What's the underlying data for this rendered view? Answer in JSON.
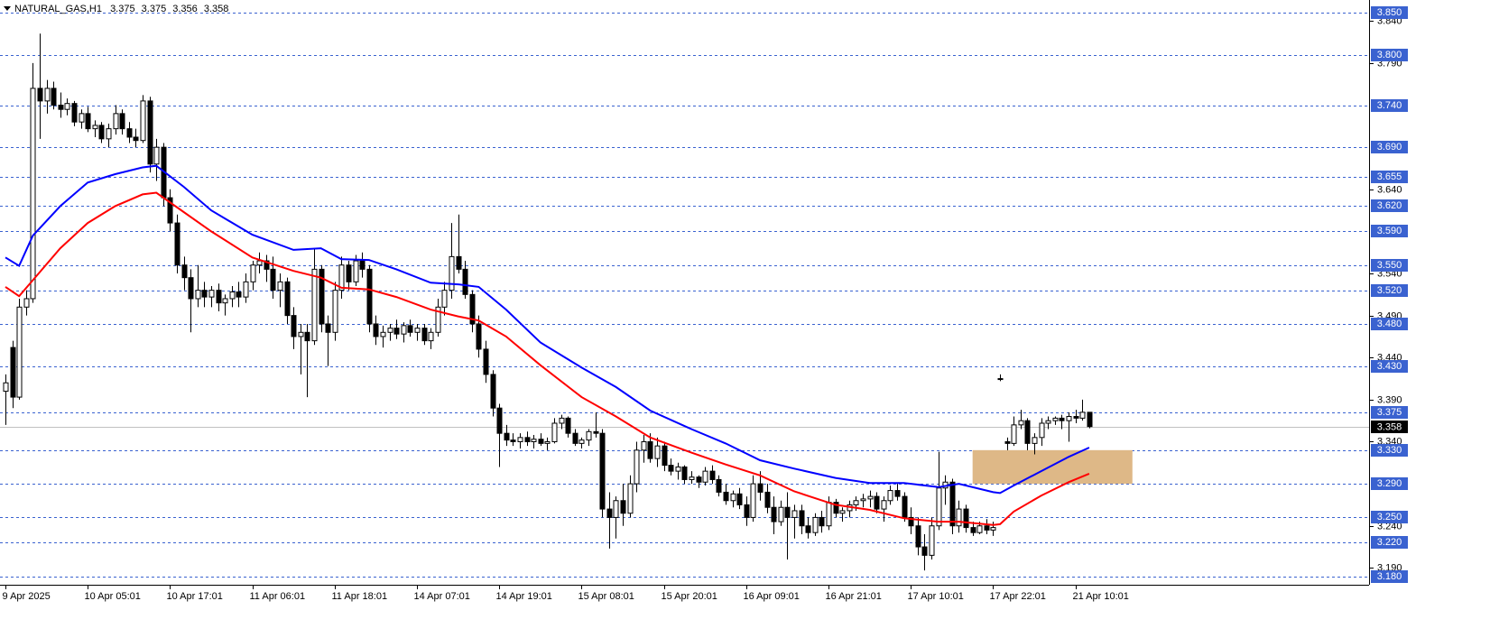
{
  "chart_data": {
    "type": "candlestick",
    "symbol": "NATURAL_GAS,H1",
    "header_values": [
      3.375,
      3.375,
      3.356,
      3.358
    ],
    "categories": [
      "9 Apr 2025",
      null,
      null,
      null,
      null,
      null,
      null,
      null,
      null,
      null,
      null,
      null,
      "10 Apr 05:01",
      null,
      null,
      null,
      null,
      null,
      null,
      null,
      null,
      null,
      null,
      null,
      "10 Apr 17:01",
      null,
      null,
      null,
      null,
      null,
      null,
      null,
      null,
      null,
      null,
      null,
      "11 Apr 06:01",
      null,
      null,
      null,
      null,
      null,
      null,
      null,
      null,
      null,
      null,
      null,
      "11 Apr 18:01",
      null,
      null,
      null,
      null,
      null,
      null,
      null,
      null,
      null,
      null,
      null,
      "14 Apr 07:01",
      null,
      null,
      null,
      null,
      null,
      null,
      null,
      null,
      null,
      null,
      null,
      "14 Apr 19:01",
      null,
      null,
      null,
      null,
      null,
      null,
      null,
      null,
      null,
      null,
      null,
      "15 Apr 08:01",
      null,
      null,
      null,
      null,
      null,
      null,
      null,
      null,
      null,
      null,
      null,
      "15 Apr 20:01",
      null,
      null,
      null,
      null,
      null,
      null,
      null,
      null,
      null,
      null,
      null,
      "16 Apr 09:01",
      null,
      null,
      null,
      null,
      null,
      null,
      null,
      null,
      null,
      null,
      null,
      "16 Apr 21:01",
      null,
      null,
      null,
      null,
      null,
      null,
      null,
      null,
      null,
      null,
      null,
      "17 Apr 10:01",
      null,
      null,
      null,
      null,
      null,
      null,
      null,
      null,
      null,
      null,
      null,
      "17 Apr 22:01",
      null,
      null,
      null,
      null,
      null,
      null,
      null,
      null,
      null,
      null,
      null,
      "21 Apr 10:01",
      null,
      null
    ],
    "candles": {
      "open": [
        3.4,
        3.452,
        3.393,
        3.5,
        3.51,
        3.76,
        3.745,
        3.76,
        3.74,
        3.735,
        3.742,
        3.72,
        3.73,
        3.712,
        3.716,
        3.7,
        3.712,
        3.73,
        3.712,
        3.702,
        3.698,
        3.745,
        3.67,
        3.69,
        3.63,
        3.6,
        3.55,
        3.535,
        3.51,
        3.52,
        3.512,
        3.52,
        3.505,
        3.51,
        3.518,
        3.512,
        3.53,
        3.55,
        3.555,
        3.545,
        3.52,
        3.53,
        3.49,
        3.465,
        3.47,
        3.46,
        3.545,
        3.48,
        3.47,
        3.52,
        3.55,
        3.53,
        3.555,
        3.545,
        3.48,
        3.465,
        3.47,
        3.475,
        3.468,
        3.478,
        3.47,
        3.475,
        3.46,
        3.47,
        3.5,
        3.52,
        3.56,
        3.545,
        3.515,
        3.48,
        3.45,
        3.42,
        3.38,
        3.35,
        3.342,
        3.34,
        3.345,
        3.34,
        3.343,
        3.338,
        3.34,
        3.362,
        3.368,
        3.35,
        3.338,
        3.342,
        3.352,
        3.35,
        3.26,
        3.25,
        3.27,
        3.255,
        3.29,
        3.33,
        3.34,
        3.32,
        3.335,
        3.312,
        3.305,
        3.31,
        3.295,
        3.298,
        3.292,
        3.305,
        3.295,
        3.28,
        3.27,
        3.278,
        3.265,
        3.25,
        3.29,
        3.28,
        3.262,
        3.245,
        3.262,
        3.25,
        3.258,
        3.24,
        3.232,
        3.25,
        3.24,
        3.268,
        3.255,
        3.258,
        3.265,
        3.27,
        3.272,
        3.275,
        3.26,
        3.27,
        3.282,
        3.275,
        3.25,
        3.24,
        3.215,
        3.205,
        3.24,
        3.285,
        3.292,
        3.24,
        3.26,
        3.238,
        3.232,
        3.24,
        3.235,
        3.415,
        3.34,
        3.338,
        3.36,
        3.365,
        3.338,
        3.345,
        3.362,
        3.365,
        3.368,
        3.365,
        3.37,
        3.368,
        3.375
      ],
      "high": [
        3.42,
        3.46,
        3.51,
        3.52,
        3.79,
        3.825,
        3.77,
        3.768,
        3.755,
        3.748,
        3.745,
        3.735,
        3.738,
        3.722,
        3.72,
        3.718,
        3.74,
        3.735,
        3.72,
        3.712,
        3.752,
        3.75,
        3.7,
        3.695,
        3.64,
        3.61,
        3.56,
        3.545,
        3.55,
        3.53,
        3.525,
        3.528,
        3.515,
        3.525,
        3.53,
        3.54,
        3.555,
        3.565,
        3.562,
        3.56,
        3.54,
        3.535,
        3.5,
        3.48,
        3.48,
        3.57,
        3.55,
        3.49,
        3.53,
        3.56,
        3.555,
        3.562,
        3.565,
        3.55,
        3.49,
        3.478,
        3.48,
        3.485,
        3.482,
        3.485,
        3.48,
        3.48,
        3.475,
        3.51,
        3.53,
        3.6,
        3.61,
        3.555,
        3.52,
        3.49,
        3.46,
        3.425,
        3.385,
        3.36,
        3.35,
        3.35,
        3.352,
        3.348,
        3.35,
        3.345,
        3.368,
        3.372,
        3.37,
        3.355,
        3.345,
        3.355,
        3.375,
        3.355,
        3.28,
        3.275,
        3.29,
        3.3,
        3.34,
        3.348,
        3.35,
        3.345,
        3.34,
        3.32,
        3.315,
        3.312,
        3.305,
        3.3,
        3.31,
        3.312,
        3.3,
        3.29,
        3.282,
        3.285,
        3.275,
        3.3,
        3.305,
        3.29,
        3.275,
        3.27,
        3.28,
        3.265,
        3.265,
        3.25,
        3.255,
        3.258,
        3.275,
        3.272,
        3.262,
        3.27,
        3.275,
        3.278,
        3.282,
        3.28,
        3.275,
        3.288,
        3.29,
        3.28,
        3.262,
        3.25,
        3.23,
        3.25,
        3.328,
        3.3,
        3.296,
        3.27,
        3.265,
        3.245,
        3.245,
        3.248,
        3.245,
        3.42,
        3.345,
        3.37,
        3.378,
        3.368,
        3.35,
        3.368,
        3.37,
        3.37,
        3.372,
        3.375,
        3.378,
        3.39,
        3.375
      ],
      "low": [
        3.36,
        3.38,
        3.39,
        3.49,
        3.505,
        3.7,
        3.73,
        3.735,
        3.725,
        3.728,
        3.715,
        3.712,
        3.708,
        3.702,
        3.695,
        3.69,
        3.705,
        3.705,
        3.695,
        3.69,
        3.695,
        3.66,
        3.65,
        3.62,
        3.59,
        3.54,
        3.52,
        3.47,
        3.5,
        3.5,
        3.5,
        3.495,
        3.49,
        3.5,
        3.5,
        3.505,
        3.52,
        3.54,
        3.53,
        3.51,
        3.5,
        3.48,
        3.45,
        3.42,
        3.393,
        3.455,
        3.47,
        3.43,
        3.46,
        3.51,
        3.52,
        3.525,
        3.535,
        3.47,
        3.455,
        3.452,
        3.46,
        3.462,
        3.458,
        3.465,
        3.46,
        3.455,
        3.45,
        3.465,
        3.49,
        3.51,
        3.54,
        3.51,
        3.47,
        3.44,
        3.41,
        3.37,
        3.31,
        3.335,
        3.335,
        3.332,
        3.335,
        3.332,
        3.335,
        3.33,
        3.338,
        3.355,
        3.345,
        3.335,
        3.332,
        3.335,
        3.345,
        3.25,
        3.213,
        3.225,
        3.24,
        3.25,
        3.28,
        3.315,
        3.315,
        3.31,
        3.305,
        3.3,
        3.295,
        3.29,
        3.29,
        3.285,
        3.288,
        3.29,
        3.275,
        3.265,
        3.262,
        3.26,
        3.24,
        3.245,
        3.27,
        3.255,
        3.23,
        3.24,
        3.2,
        3.225,
        3.23,
        3.225,
        3.228,
        3.232,
        3.235,
        3.25,
        3.245,
        3.25,
        3.258,
        3.262,
        3.262,
        3.255,
        3.245,
        3.265,
        3.27,
        3.245,
        3.23,
        3.205,
        3.187,
        3.2,
        3.235,
        3.265,
        3.23,
        3.232,
        3.232,
        3.228,
        3.23,
        3.23,
        3.228,
        3.412,
        3.33,
        3.335,
        3.355,
        3.33,
        3.325,
        3.335,
        3.355,
        3.36,
        3.355,
        3.34,
        3.362,
        3.365,
        3.356
      ],
      "close": [
        3.41,
        3.393,
        3.5,
        3.51,
        3.76,
        3.745,
        3.76,
        3.74,
        3.735,
        3.742,
        3.72,
        3.73,
        3.712,
        3.716,
        3.7,
        3.712,
        3.73,
        3.712,
        3.702,
        3.698,
        3.745,
        3.67,
        3.69,
        3.63,
        3.6,
        3.55,
        3.535,
        3.51,
        3.52,
        3.512,
        3.52,
        3.505,
        3.51,
        3.518,
        3.512,
        3.53,
        3.55,
        3.555,
        3.545,
        3.52,
        3.53,
        3.49,
        3.465,
        3.47,
        3.46,
        3.545,
        3.48,
        3.47,
        3.52,
        3.55,
        3.53,
        3.555,
        3.545,
        3.48,
        3.465,
        3.47,
        3.475,
        3.468,
        3.478,
        3.47,
        3.475,
        3.46,
        3.47,
        3.5,
        3.52,
        3.56,
        3.545,
        3.515,
        3.48,
        3.45,
        3.42,
        3.38,
        3.35,
        3.342,
        3.34,
        3.345,
        3.34,
        3.343,
        3.338,
        3.34,
        3.362,
        3.368,
        3.35,
        3.338,
        3.342,
        3.352,
        3.35,
        3.26,
        3.25,
        3.27,
        3.255,
        3.29,
        3.33,
        3.34,
        3.32,
        3.335,
        3.312,
        3.305,
        3.31,
        3.295,
        3.298,
        3.292,
        3.305,
        3.295,
        3.28,
        3.27,
        3.278,
        3.265,
        3.25,
        3.29,
        3.28,
        3.262,
        3.245,
        3.262,
        3.25,
        3.258,
        3.24,
        3.232,
        3.25,
        3.24,
        3.268,
        3.255,
        3.258,
        3.265,
        3.27,
        3.272,
        3.275,
        3.26,
        3.27,
        3.282,
        3.275,
        3.25,
        3.24,
        3.215,
        3.205,
        3.24,
        3.285,
        3.292,
        3.24,
        3.26,
        3.238,
        3.232,
        3.24,
        3.235,
        3.238,
        3.415,
        3.338,
        3.36,
        3.365,
        3.338,
        3.345,
        3.362,
        3.365,
        3.368,
        3.365,
        3.37,
        3.368,
        3.375,
        3.358
      ],
      "up_color": "#ffffff",
      "down_color": "#000000"
    },
    "moving_averages": [
      {
        "color": "#0000ff",
        "x": [
          0,
          2,
          4,
          8,
          12,
          16,
          20,
          22,
          26,
          30,
          36,
          42,
          46,
          49,
          53,
          57,
          62,
          66,
          69,
          73,
          78,
          84,
          89,
          94,
          100,
          105,
          110,
          115,
          121,
          126,
          131,
          136,
          139,
          144,
          145,
          147,
          151,
          155,
          158
        ],
        "values": [
          3.559,
          3.549,
          3.585,
          3.62,
          3.648,
          3.658,
          3.666,
          3.668,
          3.643,
          3.615,
          3.586,
          3.568,
          3.57,
          3.557,
          3.556,
          3.545,
          3.529,
          3.527,
          3.524,
          3.497,
          3.458,
          3.428,
          3.405,
          3.377,
          3.355,
          3.338,
          3.318,
          3.308,
          3.297,
          3.291,
          3.291,
          3.286,
          3.29,
          3.28,
          3.279,
          3.288,
          3.305,
          3.322,
          3.333
        ]
      },
      {
        "color": "#ff0000",
        "x": [
          0,
          2,
          4,
          8,
          12,
          16,
          20,
          22,
          26,
          30,
          36,
          42,
          46,
          49,
          53,
          57,
          62,
          66,
          69,
          73,
          78,
          84,
          89,
          94,
          100,
          105,
          110,
          115,
          121,
          126,
          131,
          136,
          139,
          144,
          145,
          147,
          151,
          155,
          158
        ],
        "values": [
          3.524,
          3.513,
          3.532,
          3.57,
          3.6,
          3.62,
          3.634,
          3.636,
          3.613,
          3.59,
          3.559,
          3.543,
          3.535,
          3.523,
          3.521,
          3.512,
          3.497,
          3.489,
          3.484,
          3.465,
          3.431,
          3.393,
          3.37,
          3.345,
          3.327,
          3.313,
          3.3,
          3.281,
          3.265,
          3.259,
          3.249,
          3.245,
          3.245,
          3.241,
          3.242,
          3.257,
          3.276,
          3.292,
          3.302
        ]
      }
    ],
    "xlim": [
      -0.79,
      198.8
    ],
    "ylim": [
      3.17,
      3.865
    ],
    "yticks": [
      {
        "value": 3.84,
        "label": "3.840"
      },
      {
        "value": 3.79,
        "label": "3.790"
      },
      {
        "value": 3.64,
        "label": "3.640"
      },
      {
        "value": 3.54,
        "label": "3.540"
      },
      {
        "value": 3.49,
        "label": "3.490"
      },
      {
        "value": 3.44,
        "label": "3.440"
      },
      {
        "value": 3.39,
        "label": "3.390"
      },
      {
        "value": 3.34,
        "label": "3.340"
      },
      {
        "value": 3.24,
        "label": "3.240"
      },
      {
        "value": 3.19,
        "label": "3.190"
      }
    ],
    "levels": [
      {
        "value": 3.85,
        "label": "3.850"
      },
      {
        "value": 3.8,
        "label": "3.800"
      },
      {
        "value": 3.74,
        "label": "3.740"
      },
      {
        "value": 3.69,
        "label": "3.690"
      },
      3.655,
      {
        "value": 3.62,
        "label": "3.620"
      },
      {
        "value": 3.59,
        "label": "3.590"
      },
      {
        "value": 3.55,
        "label": "3.550"
      },
      {
        "value": 3.52,
        "label": "3.520"
      },
      {
        "value": 3.48,
        "label": "3.480"
      },
      {
        "value": 3.43,
        "label": "3.430"
      },
      3.375,
      {
        "value": 3.33,
        "label": "3.330"
      },
      {
        "value": 3.29,
        "label": "3.290"
      },
      {
        "value": 3.25,
        "label": "3.250"
      },
      {
        "value": 3.22,
        "label": "3.220"
      },
      {
        "value": 3.18,
        "label": "3.180"
      }
    ],
    "level_color": "#3a62d0",
    "current_price": 3.358,
    "zone": {
      "from": 3.29,
      "to": 3.33,
      "x": [
        141,
        164.3
      ],
      "color": "#deb887"
    }
  }
}
